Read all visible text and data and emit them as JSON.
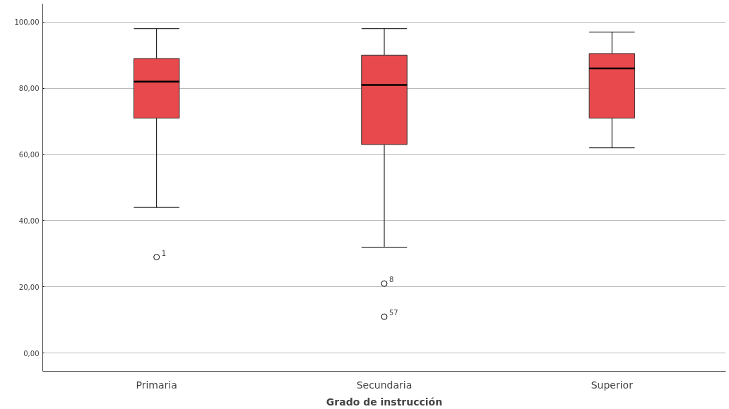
{
  "chart_data": {
    "type": "box",
    "xlabel": "Grado de instrucción",
    "categories": [
      "Primaria",
      "Secundaria",
      "Superior"
    ],
    "ylim": [
      -5.5,
      105.5
    ],
    "yticks": [
      {
        "value": 0,
        "label": "0,00"
      },
      {
        "value": 20,
        "label": "20,00"
      },
      {
        "value": 40,
        "label": "40,00"
      },
      {
        "value": 60,
        "label": "60,00"
      },
      {
        "value": 80,
        "label": "80,00"
      },
      {
        "value": 100,
        "label": "100,00"
      }
    ],
    "grid": "y",
    "marker": "circle",
    "series": [
      {
        "color": "#e8494c",
        "boxes": [
          {
            "low": 44,
            "q1": 71,
            "median": 82,
            "q3": 89,
            "high": 98,
            "outliers": [
              29
            ]
          },
          {
            "low": 32,
            "q1": 63,
            "median": 81,
            "q3": 90,
            "high": 98,
            "outliers": [
              21,
              11
            ]
          },
          {
            "low": 62,
            "q1": 71,
            "median": 86,
            "q3": 90.5,
            "high": 97
          }
        ]
      }
    ],
    "annotations": [
      "1",
      "8",
      "57"
    ]
  }
}
